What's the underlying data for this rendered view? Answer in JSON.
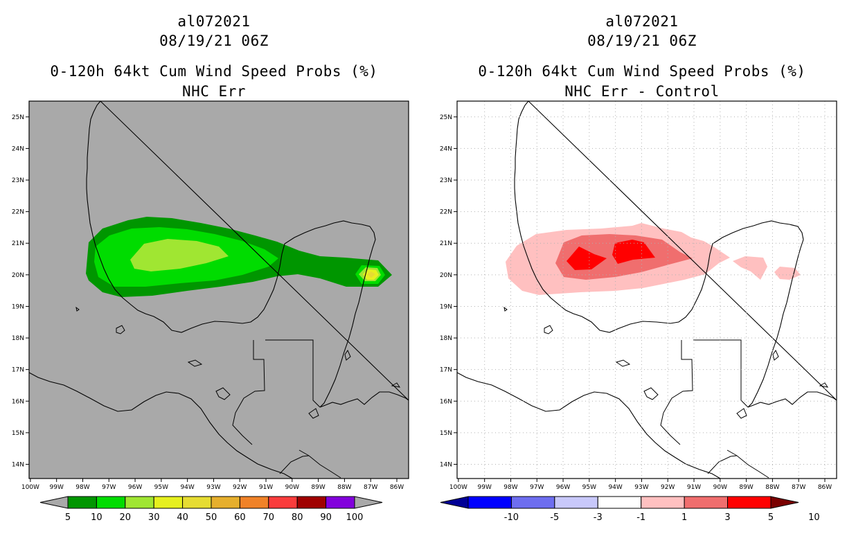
{
  "panels": [
    {
      "title_line1": "al072021",
      "title_line2": "08/19/21 06Z",
      "title_line3": "0-120h 64kt Cum Wind Speed Probs (%)",
      "title_line4": "NHC Err",
      "background": "#a9a9a9",
      "grid": false,
      "colorbar_labels": [
        "5",
        "10",
        "20",
        "30",
        "40",
        "50",
        "60",
        "70",
        "80",
        "90",
        "100"
      ],
      "colorbar_colors": [
        "#009600",
        "#00dc00",
        "#a0e632",
        "#e6f01e",
        "#e6dc32",
        "#e6af2d",
        "#f08228",
        "#fa3c3c",
        "#a00000",
        "#8200dc"
      ],
      "colorbar_end_color": "#a9a9a9"
    },
    {
      "title_line1": "al072021",
      "title_line2": "08/19/21 06Z",
      "title_line3": "0-120h 64kt Cum Wind Speed Probs (%)",
      "title_line4": "NHC Err - Control",
      "background": "#ffffff",
      "grid": true,
      "colorbar_labels": [
        "-10",
        "-5",
        "-3",
        "-1",
        "1",
        "3",
        "5",
        "10"
      ],
      "colorbar_colors": [
        "#0000ff",
        "#6e6ef0",
        "#c8c8fa",
        "#ffffff",
        "#ffc0c0",
        "#f06e6e",
        "#ff0000"
      ],
      "colorbar_low_color": "#000096",
      "colorbar_high_color": "#7a0000"
    }
  ],
  "axes": {
    "lon_labels": [
      "100W",
      "99W",
      "98W",
      "97W",
      "96W",
      "95W",
      "94W",
      "93W",
      "92W",
      "91W",
      "90W",
      "89W",
      "88W",
      "87W",
      "86W"
    ],
    "lat_labels": [
      "25N",
      "24N",
      "23N",
      "22N",
      "21N",
      "20N",
      "19N",
      "18N",
      "17N",
      "16N",
      "15N",
      "14N"
    ]
  }
}
